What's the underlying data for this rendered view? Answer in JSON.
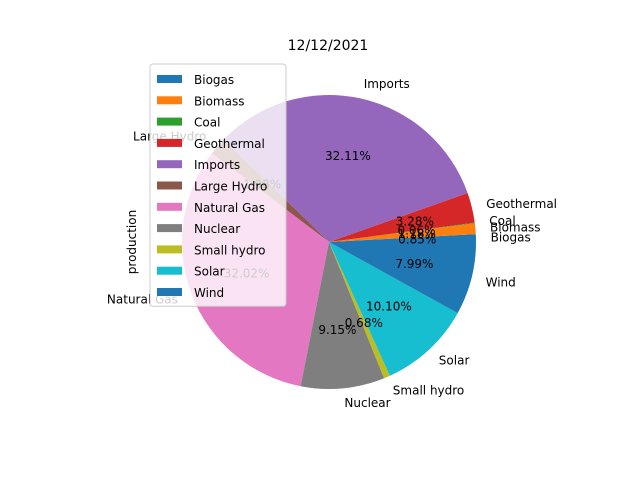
{
  "chart_data": {
    "type": "pie",
    "title": "12/12/2021",
    "ylabel": "production",
    "legend_position": "upper-left",
    "series": [
      {
        "name": "Biogas",
        "value": 0.85,
        "label": "0.85%",
        "color": "#1f77b4"
      },
      {
        "name": "Biomass",
        "value": 1.18,
        "label": "1.18%",
        "color": "#ff7f0e"
      },
      {
        "name": "Coal",
        "value": 0.06,
        "label": "0.06%",
        "color": "#2ca02c"
      },
      {
        "name": "Geothermal",
        "value": 3.28,
        "label": "3.28%",
        "color": "#d62728"
      },
      {
        "name": "Imports",
        "value": 32.11,
        "label": "32.11%",
        "color": "#9467bd"
      },
      {
        "name": "Large Hydro",
        "value": 1.98,
        "label": "1.98%",
        "color": "#8c564b"
      },
      {
        "name": "Natural Gas",
        "value": 32.02,
        "label": "32.02%",
        "color": "#e377c2"
      },
      {
        "name": "Nuclear",
        "value": 9.15,
        "label": "9.15%",
        "color": "#7f7f7f"
      },
      {
        "name": "Small hydro",
        "value": 0.68,
        "label": "0.68%",
        "color": "#bcbd22"
      },
      {
        "name": "Solar",
        "value": 10.1,
        "label": "10.10%",
        "color": "#17becf"
      },
      {
        "name": "Wind",
        "value": 7.99,
        "label": "7.99%",
        "color": "#1f77b4"
      }
    ]
  }
}
